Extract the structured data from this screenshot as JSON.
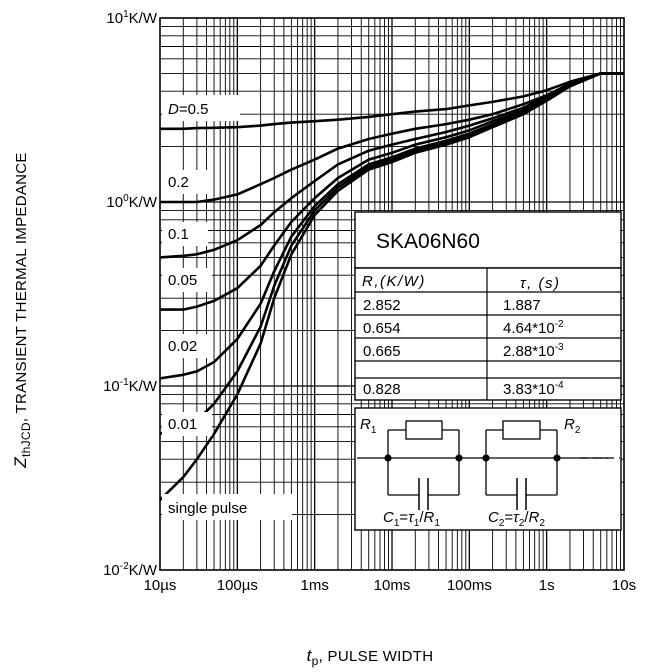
{
  "chart_data": {
    "type": "line",
    "title": "",
    "ylabel_main": "Z",
    "ylabel_sub": "thJCD",
    "ylabel_rest": ", TRANSIENT THERMAL IMPEDANCE",
    "xlabel_main": "t",
    "xlabel_sub": "p",
    "xlabel_rest": ", PULSE WIDTH",
    "xscale": "log",
    "yscale": "log",
    "xlim": [
      1e-05,
      10
    ],
    "ylim": [
      0.01,
      10
    ],
    "grid": true,
    "x_ticks": [
      {
        "value": 1e-05,
        "label": "10µs"
      },
      {
        "value": 0.0001,
        "label": "100µs"
      },
      {
        "value": 0.001,
        "label": "1ms"
      },
      {
        "value": 0.01,
        "label": "10ms"
      },
      {
        "value": 0.1,
        "label": "100ms"
      },
      {
        "value": 1,
        "label": "1s"
      },
      {
        "value": 10,
        "label": "10s"
      }
    ],
    "y_ticks": [
      {
        "value": 10,
        "base": "10",
        "exp": "1",
        "unit": "K/W"
      },
      {
        "value": 1,
        "base": "10",
        "exp": "0",
        "unit": "K/W"
      },
      {
        "value": 0.1,
        "base": "10",
        "exp": "-1",
        "unit": "K/W"
      },
      {
        "value": 0.01,
        "base": "10",
        "exp": "-2",
        "unit": "K/W"
      }
    ],
    "x": [
      1e-05,
      2e-05,
      3e-05,
      5e-05,
      0.0001,
      0.0002,
      0.0003,
      0.0005,
      0.001,
      0.002,
      0.005,
      0.01,
      0.02,
      0.05,
      0.1,
      0.2,
      0.5,
      1,
      2,
      5,
      10
    ],
    "series": [
      {
        "name": "D=0.5",
        "values": [
          2.5,
          2.5,
          2.52,
          2.53,
          2.55,
          2.6,
          2.65,
          2.7,
          2.75,
          2.8,
          2.9,
          3.0,
          3.1,
          3.2,
          3.35,
          3.5,
          3.75,
          4.05,
          4.5,
          5.0,
          5.0
        ]
      },
      {
        "name": "0.2",
        "values": [
          1.0,
          1.0,
          1.0,
          1.03,
          1.1,
          1.25,
          1.35,
          1.5,
          1.7,
          1.95,
          2.2,
          2.35,
          2.5,
          2.65,
          2.8,
          3.0,
          3.4,
          3.8,
          4.4,
          5.0,
          5.0
        ]
      },
      {
        "name": "0.1",
        "values": [
          0.5,
          0.51,
          0.52,
          0.55,
          0.62,
          0.75,
          0.88,
          1.05,
          1.3,
          1.6,
          1.9,
          2.05,
          2.2,
          2.4,
          2.6,
          2.85,
          3.25,
          3.75,
          4.4,
          5.0,
          5.0
        ]
      },
      {
        "name": "0.05",
        "values": [
          0.26,
          0.26,
          0.27,
          0.29,
          0.34,
          0.45,
          0.58,
          0.78,
          1.05,
          1.35,
          1.7,
          1.85,
          2.05,
          2.25,
          2.45,
          2.75,
          3.15,
          3.7,
          4.35,
          5.0,
          5.0
        ]
      },
      {
        "name": "0.02",
        "values": [
          0.11,
          0.115,
          0.12,
          0.135,
          0.18,
          0.28,
          0.42,
          0.65,
          0.95,
          1.25,
          1.6,
          1.75,
          1.95,
          2.15,
          2.35,
          2.65,
          3.1,
          3.65,
          4.3,
          5.0,
          5.0
        ]
      },
      {
        "name": "0.01",
        "values": [
          0.055,
          0.06,
          0.065,
          0.08,
          0.12,
          0.21,
          0.35,
          0.58,
          0.9,
          1.2,
          1.55,
          1.7,
          1.9,
          2.1,
          2.3,
          2.6,
          3.05,
          3.6,
          4.3,
          5.0,
          5.0
        ]
      },
      {
        "name": "single pulse",
        "values": [
          0.024,
          0.032,
          0.04,
          0.055,
          0.09,
          0.17,
          0.3,
          0.52,
          0.85,
          1.15,
          1.5,
          1.65,
          1.85,
          2.05,
          2.25,
          2.55,
          3.0,
          3.55,
          4.25,
          5.0,
          5.0
        ]
      }
    ],
    "annotations": [
      {
        "text": "D=0.5",
        "kind": "duty"
      },
      {
        "text": "0.2"
      },
      {
        "text": "0.1"
      },
      {
        "text": "0.05"
      },
      {
        "text": "0.02"
      },
      {
        "text": "0.01"
      },
      {
        "text": "single pulse"
      }
    ],
    "inset": {
      "part_number": "SKA06N60",
      "headers": [
        "R,(K/W)",
        "τ, (s)"
      ],
      "rows": [
        {
          "r": "2.852",
          "tau_mant": "1.887",
          "tau_exp": ""
        },
        {
          "r": "0.654",
          "tau_mant": "4.64*10",
          "tau_exp": "-2"
        },
        {
          "r": "0.665",
          "tau_mant": "2.88*10",
          "tau_exp": "-3"
        },
        {
          "r": "0.828",
          "tau_mant": "3.83*10",
          "tau_exp": "-4"
        }
      ],
      "circuit": {
        "r1": "R",
        "r1_sub": "1",
        "r2": "R",
        "r2_sub": "2",
        "c1": "C",
        "c1_sub": "1",
        "tau1": "τ",
        "tau1_sub": "1",
        "c2": "C",
        "c2_sub": "2",
        "tau2": "τ",
        "tau2_sub": "2"
      }
    }
  }
}
